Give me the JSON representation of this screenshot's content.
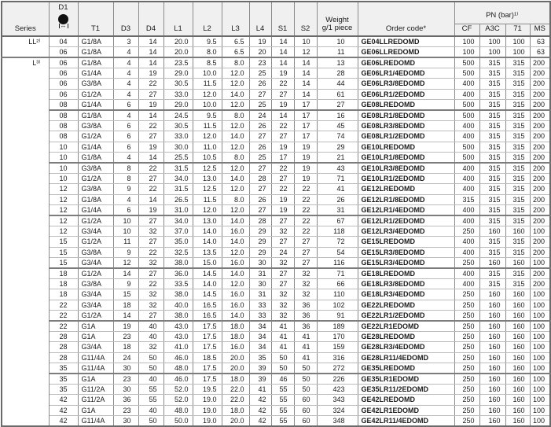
{
  "table": {
    "headers": {
      "series": "Series",
      "d1": "D1",
      "t1": "T1",
      "d3": "D3",
      "d4": "D4",
      "l1": "L1",
      "l2": "L2",
      "l3": "L3",
      "l4": "L4",
      "s1": "S1",
      "s2": "S2",
      "weight_line1": "Weight",
      "weight_line2": "g/1 piece",
      "order_code": "Order code*",
      "pn_group": "PN (bar)¹⁾",
      "pn_cols": [
        "CF",
        "A3C",
        "71",
        "MS"
      ]
    },
    "icons": {
      "d1_icon_name": "filled-circle-diameter-icon",
      "d1_arrow_glyph": "↔"
    },
    "series": [
      {
        "label": "LL²⁾",
        "start_row": 1,
        "rows": 2,
        "thick_bottom": true
      },
      {
        "label": "L³⁾",
        "start_row": 3,
        "rows": 35,
        "thick_bottom": false
      }
    ],
    "column_keys": [
      "d1",
      "t1",
      "d3",
      "d4",
      "l1",
      "l2",
      "l3",
      "l4",
      "s1",
      "s2",
      "weight",
      "order-code",
      "pn-cf",
      "pn-a3c",
      "pn-71",
      "pn-ms"
    ],
    "group_breaks_after": [
      2,
      7,
      12,
      17,
      22,
      27,
      32
    ],
    "rows": [
      [
        "04",
        "G1/8A",
        "3",
        "14",
        "20.0",
        "9.5",
        "6.5",
        "19",
        "14",
        "10",
        "10",
        "GE04LLREDOMD",
        "100",
        "100",
        "100",
        "63"
      ],
      [
        "06",
        "G1/8A",
        "4",
        "14",
        "20.0",
        "8.0",
        "6.5",
        "20",
        "14",
        "12",
        "11",
        "GE06LLREDOMD",
        "100",
        "100",
        "100",
        "63"
      ],
      [
        "06",
        "G1/8A",
        "4",
        "14",
        "23.5",
        "8.5",
        "8.0",
        "23",
        "14",
        "14",
        "13",
        "GE06LREDOMD",
        "500",
        "315",
        "315",
        "200"
      ],
      [
        "06",
        "G1/4A",
        "4",
        "19",
        "29.0",
        "10.0",
        "12.0",
        "25",
        "19",
        "14",
        "28",
        "GE06LR1/4EDOMD",
        "500",
        "315",
        "315",
        "200"
      ],
      [
        "06",
        "G3/8A",
        "4",
        "22",
        "30.5",
        "11.5",
        "12.0",
        "26",
        "22",
        "14",
        "44",
        "GE06LR3/8EDOMD",
        "400",
        "315",
        "315",
        "200"
      ],
      [
        "06",
        "G1/2A",
        "4",
        "27",
        "33.0",
        "12.0",
        "14.0",
        "27",
        "27",
        "14",
        "61",
        "GE06LR1/2EDOMD",
        "400",
        "315",
        "315",
        "200"
      ],
      [
        "08",
        "G1/4A",
        "6",
        "19",
        "29.0",
        "10.0",
        "12.0",
        "25",
        "19",
        "17",
        "27",
        "GE08LREDOMD",
        "500",
        "315",
        "315",
        "200"
      ],
      [
        "08",
        "G1/8A",
        "4",
        "14",
        "24.5",
        "9.5",
        "8.0",
        "24",
        "14",
        "17",
        "16",
        "GE08LR1/8EDOMD",
        "500",
        "315",
        "315",
        "200"
      ],
      [
        "08",
        "G3/8A",
        "6",
        "22",
        "30.5",
        "11.5",
        "12.0",
        "26",
        "22",
        "17",
        "45",
        "GE08LR3/8EDOMD",
        "400",
        "315",
        "315",
        "200"
      ],
      [
        "08",
        "G1/2A",
        "6",
        "27",
        "33.0",
        "12.0",
        "14.0",
        "27",
        "27",
        "17",
        "74",
        "GE08LR1/2EDOMD",
        "400",
        "315",
        "315",
        "200"
      ],
      [
        "10",
        "G1/4A",
        "6",
        "19",
        "30.0",
        "11.0",
        "12.0",
        "26",
        "19",
        "19",
        "29",
        "GE10LREDOMD",
        "500",
        "315",
        "315",
        "200"
      ],
      [
        "10",
        "G1/8A",
        "4",
        "14",
        "25.5",
        "10.5",
        "8.0",
        "25",
        "17",
        "19",
        "21",
        "GE10LR1/8EDOMD",
        "500",
        "315",
        "315",
        "200"
      ],
      [
        "10",
        "G3/8A",
        "8",
        "22",
        "31.5",
        "12.5",
        "12.0",
        "27",
        "22",
        "19",
        "43",
        "GE10LR3/8EDOMD",
        "400",
        "315",
        "315",
        "200"
      ],
      [
        "10",
        "G1/2A",
        "8",
        "27",
        "34.0",
        "13.0",
        "14.0",
        "28",
        "27",
        "19",
        "71",
        "GE10LR1/2EDOMD",
        "400",
        "315",
        "315",
        "200"
      ],
      [
        "12",
        "G3/8A",
        "9",
        "22",
        "31.5",
        "12.5",
        "12.0",
        "27",
        "22",
        "22",
        "41",
        "GE12LREDOMD",
        "400",
        "315",
        "315",
        "200"
      ],
      [
        "12",
        "G1/8A",
        "4",
        "14",
        "26.5",
        "11.5",
        "8.0",
        "26",
        "19",
        "22",
        "26",
        "GE12LR1/8EDOMD",
        "315",
        "315",
        "315",
        "200"
      ],
      [
        "12",
        "G1/4A",
        "6",
        "19",
        "31.0",
        "12.0",
        "12.0",
        "27",
        "19",
        "22",
        "31",
        "GE12LR1/4EDOMD",
        "400",
        "315",
        "315",
        "200"
      ],
      [
        "12",
        "G1/2A",
        "10",
        "27",
        "34.0",
        "13.0",
        "14.0",
        "28",
        "27",
        "22",
        "67",
        "GE12LR1/2EDOMD",
        "400",
        "315",
        "315",
        "200"
      ],
      [
        "12",
        "G3/4A",
        "10",
        "32",
        "37.0",
        "14.0",
        "16.0",
        "29",
        "32",
        "22",
        "118",
        "GE12LR3/4EDOMD",
        "250",
        "160",
        "160",
        "100"
      ],
      [
        "15",
        "G1/2A",
        "11",
        "27",
        "35.0",
        "14.0",
        "14.0",
        "29",
        "27",
        "27",
        "72",
        "GE15LREDOMD",
        "400",
        "315",
        "315",
        "200"
      ],
      [
        "15",
        "G3/8A",
        "9",
        "22",
        "32.5",
        "13.5",
        "12.0",
        "29",
        "24",
        "27",
        "54",
        "GE15LR3/8EDOMD",
        "400",
        "315",
        "315",
        "200"
      ],
      [
        "15",
        "G3/4A",
        "12",
        "32",
        "38.0",
        "15.0",
        "16.0",
        "30",
        "32",
        "27",
        "116",
        "GE15LR3/4EDOMD",
        "250",
        "160",
        "160",
        "100"
      ],
      [
        "18",
        "G1/2A",
        "14",
        "27",
        "36.0",
        "14.5",
        "14.0",
        "31",
        "27",
        "32",
        "71",
        "GE18LREDOMD",
        "400",
        "315",
        "315",
        "200"
      ],
      [
        "18",
        "G3/8A",
        "9",
        "22",
        "33.5",
        "14.0",
        "12.0",
        "30",
        "27",
        "32",
        "66",
        "GE18LR3/8EDOMD",
        "400",
        "315",
        "315",
        "200"
      ],
      [
        "18",
        "G3/4A",
        "15",
        "32",
        "38.0",
        "14.5",
        "16.0",
        "31",
        "32",
        "32",
        "110",
        "GE18LR3/4EDOMD",
        "250",
        "160",
        "160",
        "100"
      ],
      [
        "22",
        "G3/4A",
        "18",
        "32",
        "40.0",
        "16.5",
        "16.0",
        "33",
        "32",
        "36",
        "102",
        "GE22LREDOMD",
        "250",
        "160",
        "160",
        "100"
      ],
      [
        "22",
        "G1/2A",
        "14",
        "27",
        "38.0",
        "16.5",
        "14.0",
        "33",
        "32",
        "36",
        "91",
        "GE22LR1/2EDOMD",
        "250",
        "160",
        "160",
        "100"
      ],
      [
        "22",
        "G1A",
        "19",
        "40",
        "43.0",
        "17.5",
        "18.0",
        "34",
        "41",
        "36",
        "189",
        "GE22LR1EDOMD",
        "250",
        "160",
        "160",
        "100"
      ],
      [
        "28",
        "G1A",
        "23",
        "40",
        "43.0",
        "17.5",
        "18.0",
        "34",
        "41",
        "41",
        "170",
        "GE28LREDOMD",
        "250",
        "160",
        "160",
        "100"
      ],
      [
        "28",
        "G3/4A",
        "18",
        "32",
        "41.0",
        "17.5",
        "16.0",
        "34",
        "41",
        "41",
        "159",
        "GE28LR3/4EDOMD",
        "250",
        "160",
        "160",
        "100"
      ],
      [
        "28",
        "G11/4A",
        "24",
        "50",
        "46.0",
        "18.5",
        "20.0",
        "35",
        "50",
        "41",
        "316",
        "GE28LR11/4EDOMD",
        "250",
        "160",
        "160",
        "100"
      ],
      [
        "35",
        "G11/4A",
        "30",
        "50",
        "48.0",
        "17.5",
        "20.0",
        "39",
        "50",
        "50",
        "272",
        "GE35LREDOMD",
        "250",
        "160",
        "160",
        "100"
      ],
      [
        "35",
        "G1A",
        "23",
        "40",
        "46.0",
        "17.5",
        "18.0",
        "39",
        "46",
        "50",
        "226",
        "GE35LR1EDOMD",
        "250",
        "160",
        "160",
        "100"
      ],
      [
        "35",
        "G11/2A",
        "30",
        "55",
        "52.0",
        "19.5",
        "22.0",
        "41",
        "55",
        "50",
        "423",
        "GE35LR11/2EDOMD",
        "250",
        "160",
        "160",
        "100"
      ],
      [
        "42",
        "G11/2A",
        "36",
        "55",
        "52.0",
        "19.0",
        "22.0",
        "42",
        "55",
        "60",
        "343",
        "GE42LREDOMD",
        "250",
        "160",
        "160",
        "100"
      ],
      [
        "42",
        "G1A",
        "23",
        "40",
        "48.0",
        "19.0",
        "18.0",
        "42",
        "55",
        "60",
        "324",
        "GE42LR1EDOMD",
        "250",
        "160",
        "160",
        "100"
      ],
      [
        "42",
        "G11/4A",
        "30",
        "50",
        "50.0",
        "19.0",
        "20.0",
        "42",
        "55",
        "60",
        "348",
        "GE42LR11/4EDOMD",
        "250",
        "160",
        "160",
        "100"
      ]
    ],
    "colors": {
      "header_bg": "#f0f0f0",
      "grid_line": "#8a8a8a",
      "row_line": "#bcbcbc",
      "heavy_line": "#6a6a6a",
      "text": "#1a1a1a"
    }
  }
}
